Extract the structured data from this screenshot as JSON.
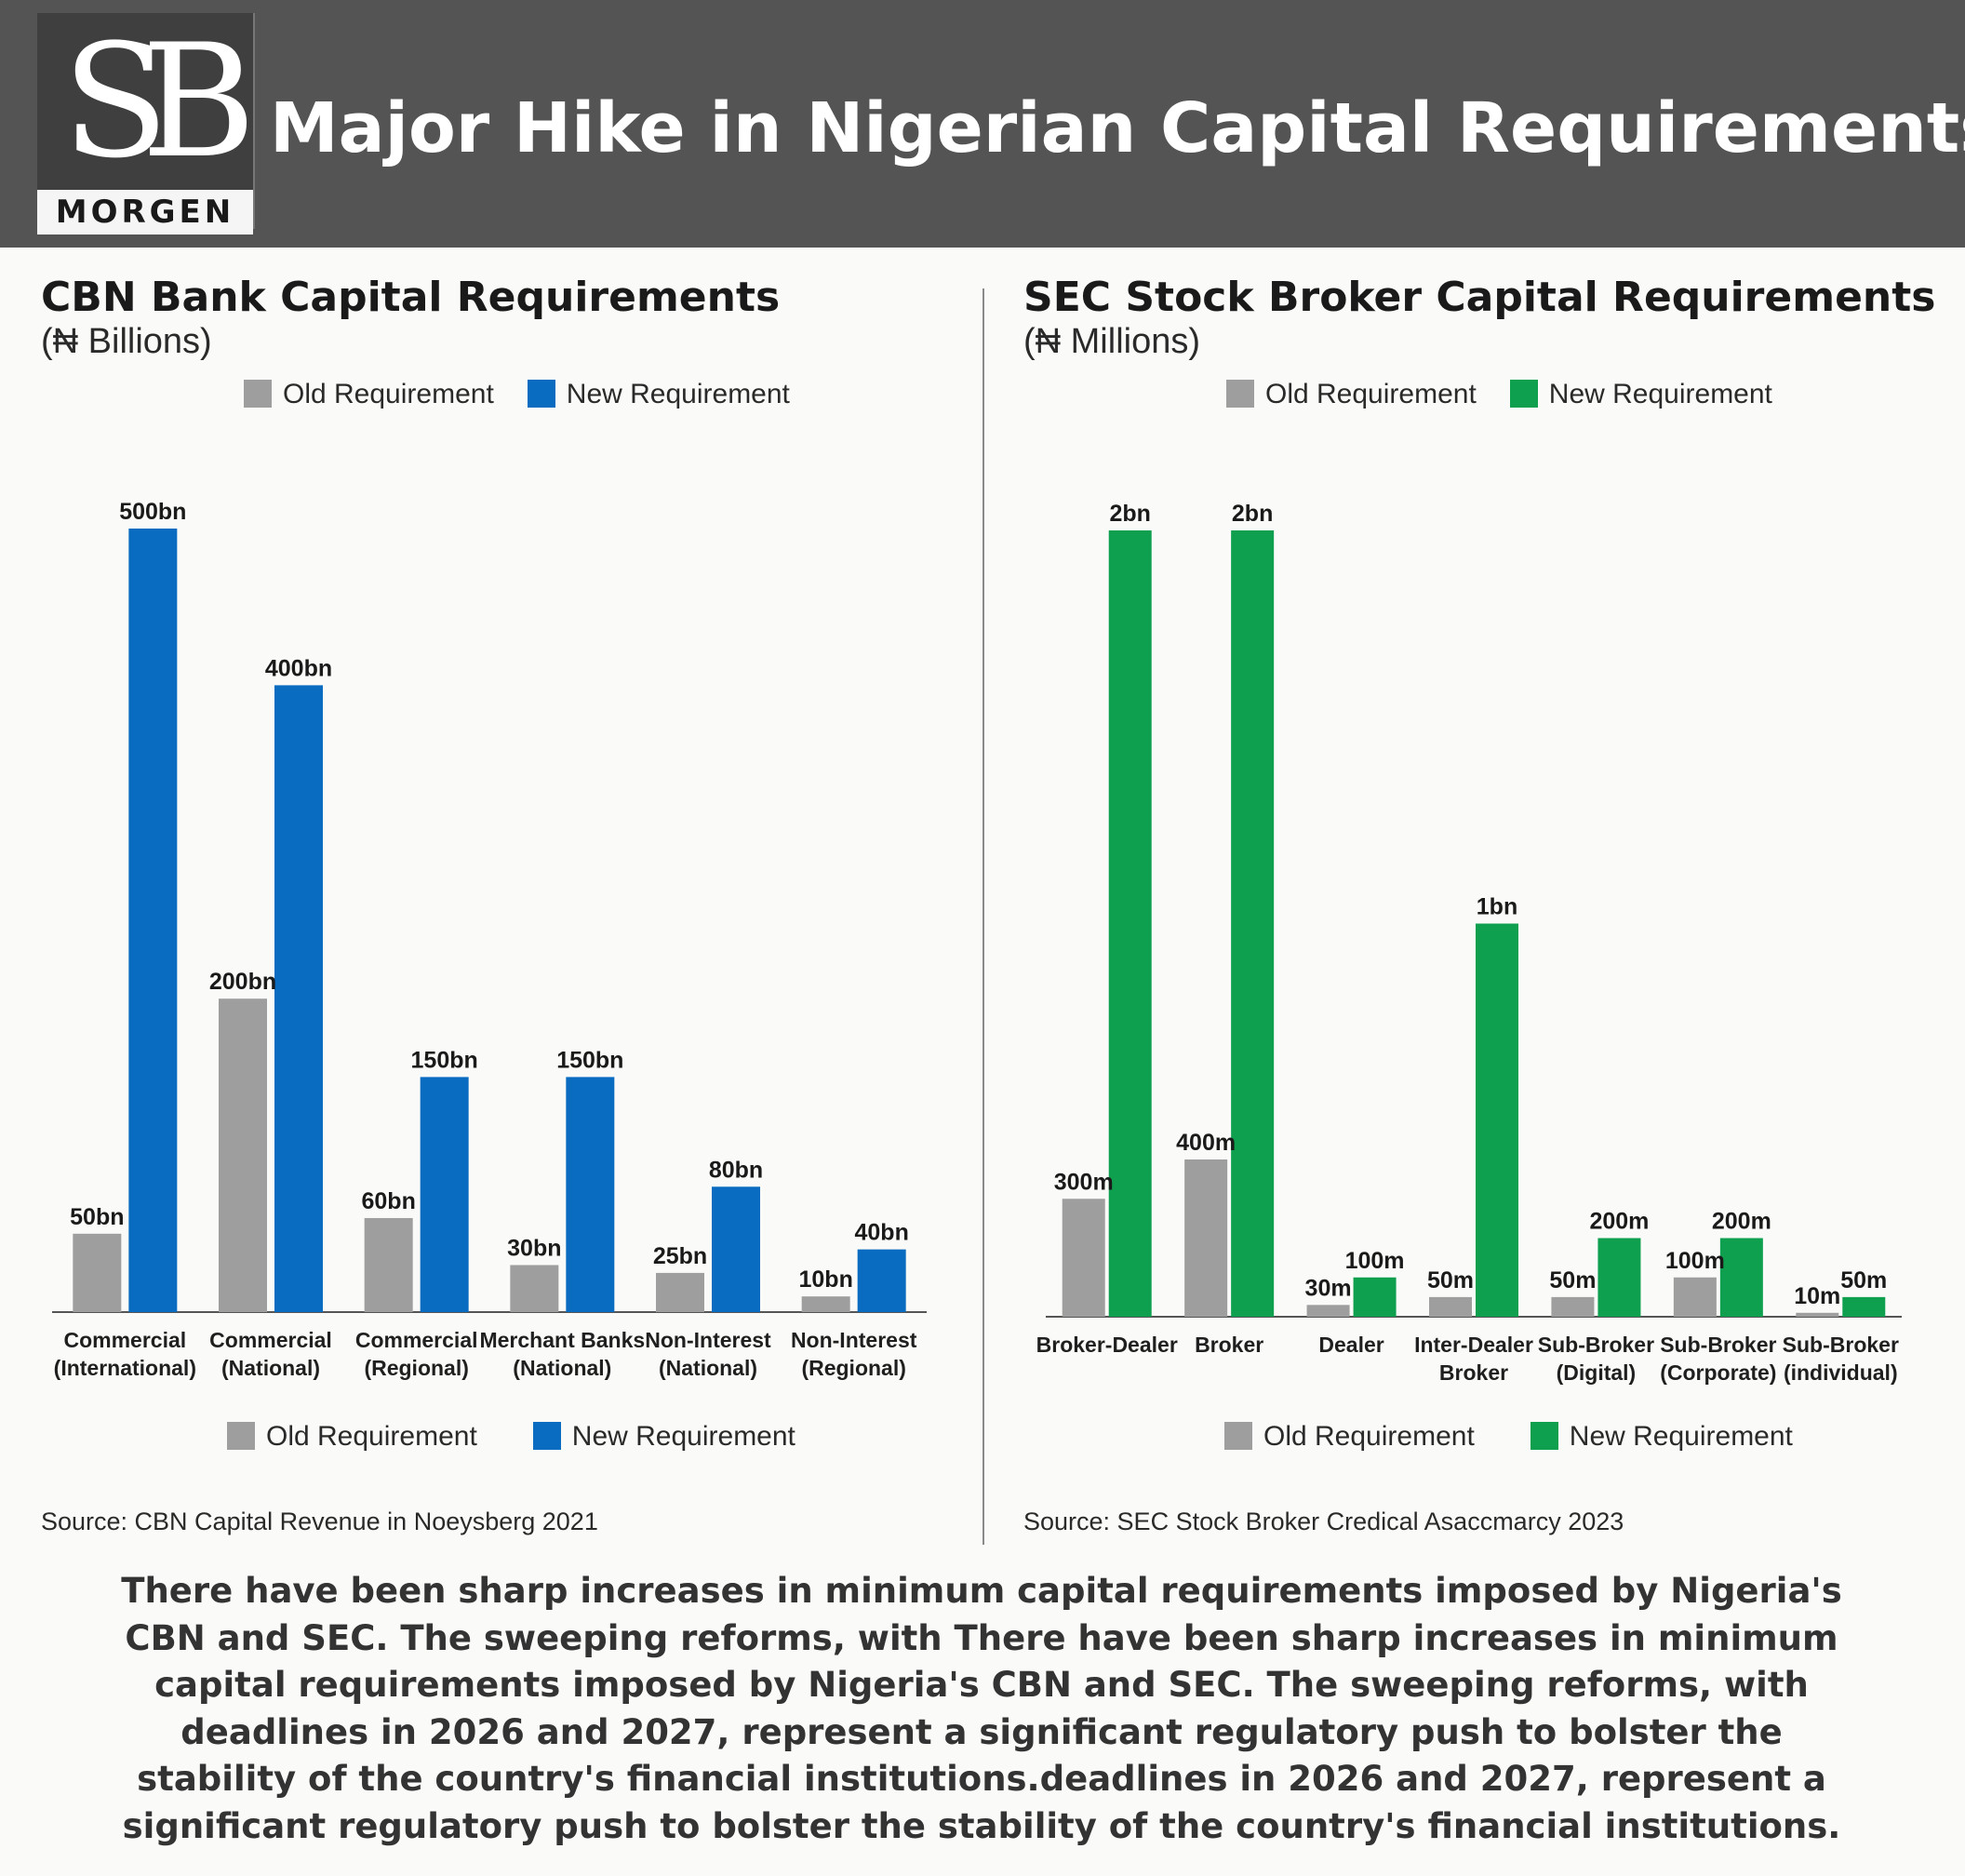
{
  "header": {
    "logo_mark": "SB",
    "logo_word": "MORGEN",
    "title": "Major Hike in Nigerian Capital Requirements"
  },
  "colors": {
    "header_bg": "#545454",
    "old_bar": "#9e9e9e",
    "cbn_new_bar": "#0a6cc0",
    "sec_new_bar": "#0fa04f"
  },
  "legend_labels": {
    "old": "Old Requirement",
    "new": "New Requirement"
  },
  "panels": {
    "cbn": {
      "title": "CBN Bank Capital Requirements",
      "subtitle": "(₦ Billions)",
      "source": "Source: CBN Capital Revenue in Noeysberg 2021"
    },
    "sec": {
      "title": "SEC Stock Broker Capital Requirements",
      "subtitle": "(₦ Millions)",
      "source": "Source: SEC Stock Broker Credical Asaccmarcy 2023"
    }
  },
  "chart_data": [
    {
      "type": "bar",
      "title": "CBN Bank Capital Requirements",
      "ylabel": "(₦ Billions)",
      "ylim": [
        0,
        500
      ],
      "categories": [
        [
          "Commercial",
          "(International)"
        ],
        [
          "Commercial",
          "(National)"
        ],
        [
          "Commercial",
          "(Regional)"
        ],
        [
          "Merchant Banks",
          "(National)"
        ],
        [
          "Non-Interest",
          "(National)"
        ],
        [
          "Non-Interest",
          "(Regional)"
        ]
      ],
      "series": [
        {
          "name": "Old Requirement",
          "values": [
            50,
            200,
            60,
            30,
            25,
            10
          ],
          "labels": [
            "50bn",
            "200bn",
            "60bn",
            "30bn",
            "25bn",
            "10bn"
          ]
        },
        {
          "name": "New Requirement",
          "values": [
            500,
            400,
            150,
            150,
            80,
            40
          ],
          "labels": [
            "500bn",
            "400bn",
            "150bn",
            "150bn",
            "80bn",
            "40bn"
          ]
        }
      ]
    },
    {
      "type": "bar",
      "title": "SEC Stock Broker Capital Requirements",
      "ylabel": "(₦ Millions)",
      "ylim": [
        0,
        2000
      ],
      "categories": [
        [
          "Broker-Dealer"
        ],
        [
          "Broker"
        ],
        [
          "Dealer"
        ],
        [
          "Inter-Dealer",
          "Broker"
        ],
        [
          "Sub-Broker",
          "(Digital)"
        ],
        [
          "Sub-Broker",
          "(Corporate)"
        ],
        [
          "Sub-Broker",
          "(individual)"
        ]
      ],
      "series": [
        {
          "name": "Old Requirement",
          "values": [
            300,
            400,
            30,
            50,
            50,
            100,
            10
          ],
          "labels": [
            "300m",
            "400m",
            "30m",
            "50m",
            "50m",
            "100m",
            "10m"
          ]
        },
        {
          "name": "New Requirement",
          "values": [
            2000,
            2000,
            100,
            1000,
            200,
            200,
            50
          ],
          "labels": [
            "2bn",
            "2bn",
            "100m",
            "1bn",
            "200m",
            "200m",
            "50m"
          ]
        }
      ]
    }
  ],
  "summary": "There have been sharp increases in minimum capital requirements imposed by Nigeria's CBN and SEC. The sweeping reforms, with There have been sharp increases in minimum capital requirements imposed by Nigeria's CBN and SEC. The sweeping reforms, with deadlines in 2026 and 2027, represent a significant regulatory push to bolster the stability of the country's financial institutions.deadlines in 2026 and 2027, represent a significant regulatory push to bolster the stability of the country's financial institutions."
}
